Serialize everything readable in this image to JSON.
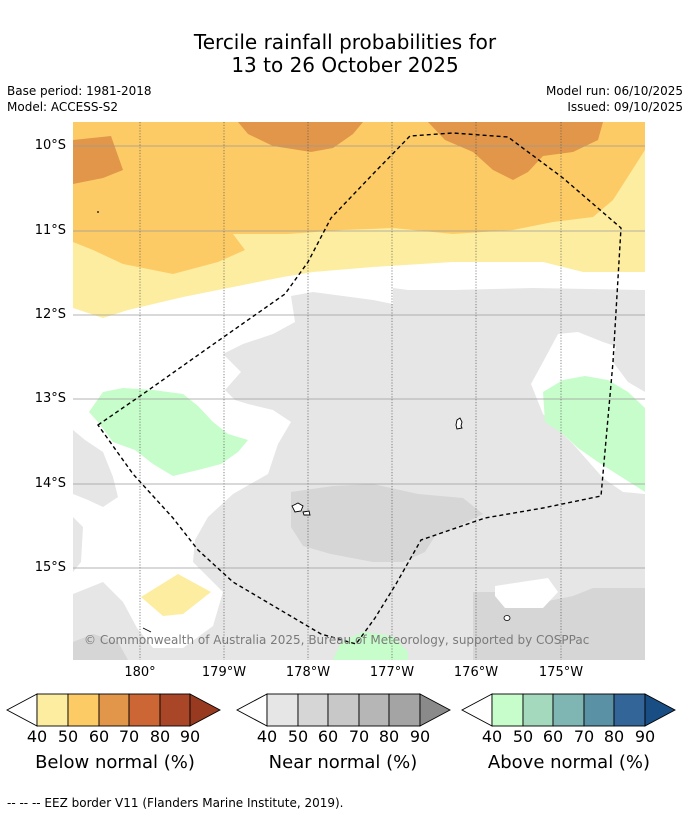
{
  "title": {
    "line1": "Tercile rainfall probabilities for",
    "line2": "13 to 26 October 2025"
  },
  "meta": {
    "base_period": "Base period: 1981-2018",
    "model": "Model: ACCESS-S2",
    "model_run": "Model run: 06/10/2025",
    "issued": "Issued: 09/10/2025"
  },
  "map": {
    "lat_labels": [
      "10°S",
      "11°S",
      "12°S",
      "13°S",
      "14°S",
      "15°S"
    ],
    "lon_labels": [
      "180°",
      "179°W",
      "178°W",
      "177°W",
      "176°W",
      "175°W"
    ],
    "copyright": "© Commonwealth of Australia 2025, Bureau of Meteorology, supported by COSPPac",
    "icons": [
      "island-outline-icon",
      "eez-border-icon"
    ]
  },
  "colorbars": [
    {
      "title": "Below normal (%)",
      "ticks": [
        "40",
        "50",
        "60",
        "70",
        "80",
        "90"
      ],
      "colors": [
        "#fdeda0",
        "#fdcb66",
        "#e1964a",
        "#cc6735",
        "#aa4628",
        "#983a1f"
      ]
    },
    {
      "title": "Near normal (%)",
      "ticks": [
        "40",
        "50",
        "60",
        "70",
        "80",
        "90"
      ],
      "colors": [
        "#e6e6e6",
        "#d6d6d6",
        "#c8c8c8",
        "#b6b6b6",
        "#a4a4a4",
        "#8a8a8a"
      ]
    },
    {
      "title": "Above normal (%)",
      "ticks": [
        "40",
        "50",
        "60",
        "70",
        "80",
        "90"
      ],
      "colors": [
        "#c6fdca",
        "#a5d9be",
        "#7fb5b2",
        "#5b91a4",
        "#336599",
        "#184e83"
      ]
    }
  ],
  "footnote": "--  --  -- EEZ border V11 (Flanders Marine Institute, 2019)."
}
